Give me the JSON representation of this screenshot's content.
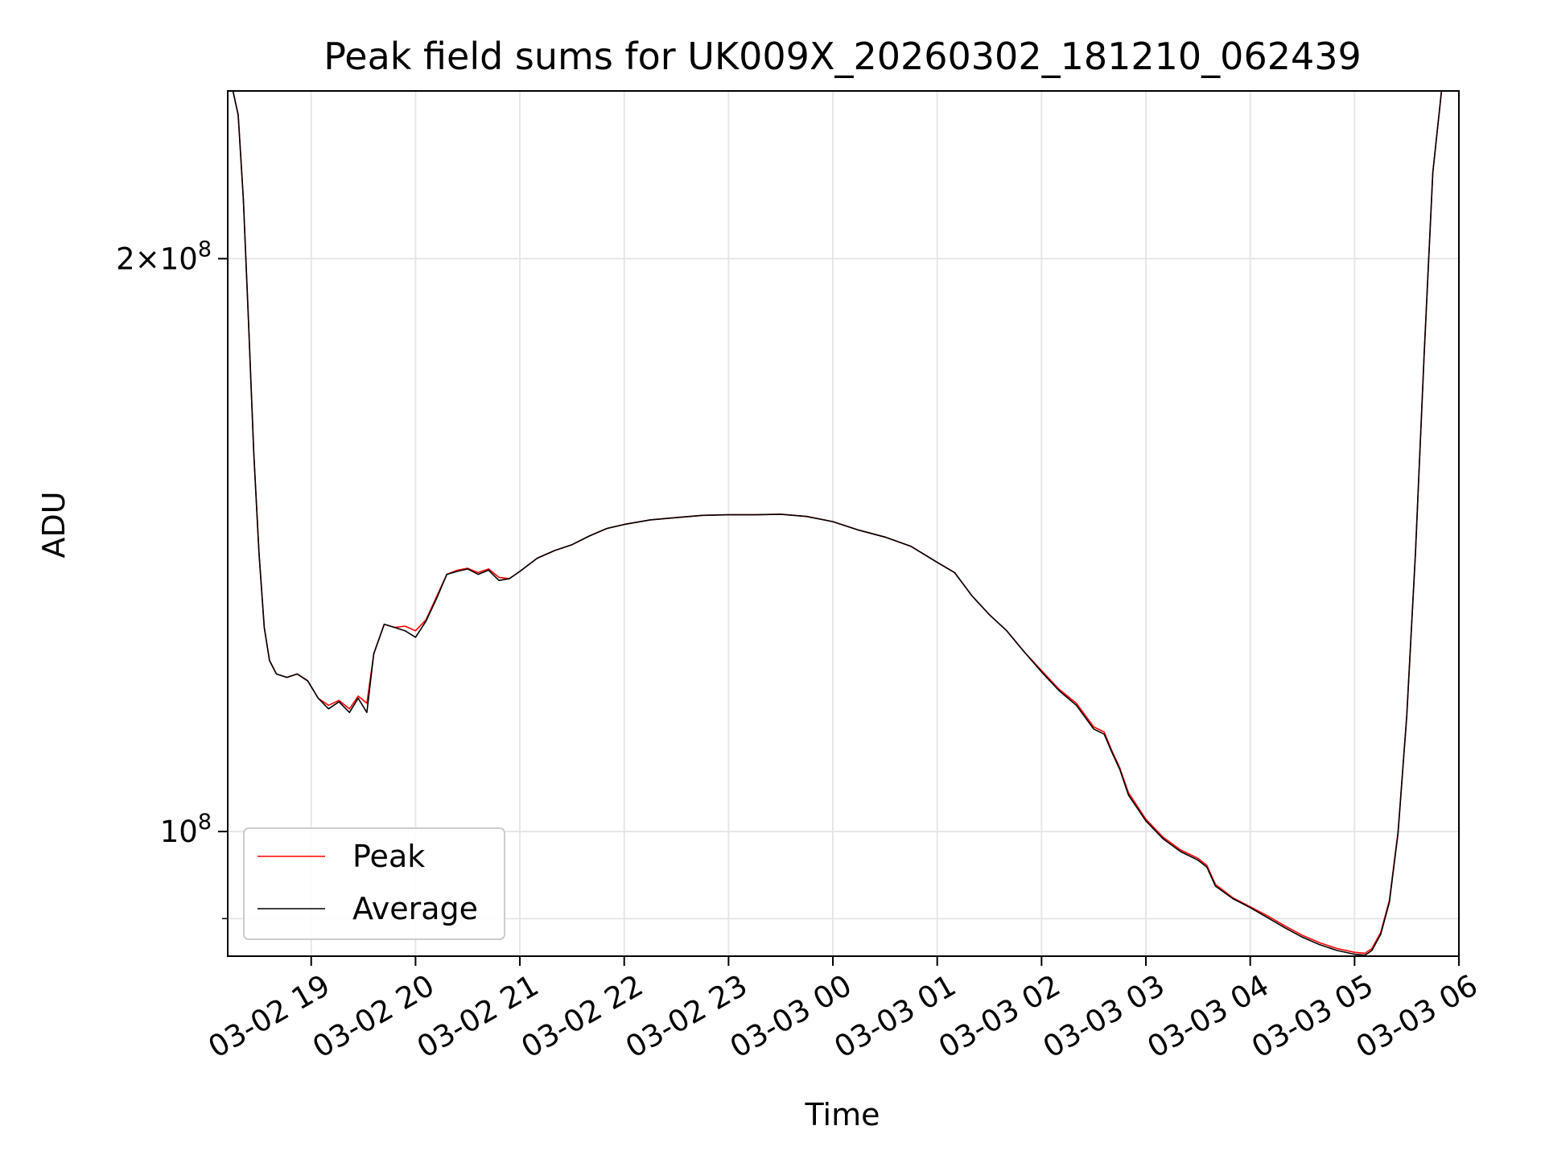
{
  "chart_data": {
    "type": "line",
    "title": "Peak field sums for UK009X_20260302_181210_062439",
    "xlabel": "Time",
    "ylabel": "ADU",
    "x_unit": "datetime",
    "xlim": [
      "2026-03-02 18:12",
      "2026-03-03 06:00"
    ],
    "ylim": [
      86000000,
      245000000
    ],
    "yscale": "log",
    "grid": true,
    "legend_position": "lower-left",
    "x_ticks": [
      {
        "value": "2026-03-02 19:00",
        "label": "03-02 19"
      },
      {
        "value": "2026-03-02 20:00",
        "label": "03-02 20"
      },
      {
        "value": "2026-03-02 21:00",
        "label": "03-02 21"
      },
      {
        "value": "2026-03-02 22:00",
        "label": "03-02 22"
      },
      {
        "value": "2026-03-02 23:00",
        "label": "03-02 23"
      },
      {
        "value": "2026-03-03 00:00",
        "label": "03-03 00"
      },
      {
        "value": "2026-03-03 01:00",
        "label": "03-03 01"
      },
      {
        "value": "2026-03-03 02:00",
        "label": "03-03 02"
      },
      {
        "value": "2026-03-03 03:00",
        "label": "03-03 03"
      },
      {
        "value": "2026-03-03 04:00",
        "label": "03-03 04"
      },
      {
        "value": "2026-03-03 05:00",
        "label": "03-03 05"
      },
      {
        "value": "2026-03-03 06:00",
        "label": "03-03 06"
      }
    ],
    "y_major_ticks": [
      {
        "value": 100000000,
        "mantissa": "",
        "exponent": "8",
        "base": "10"
      },
      {
        "value": 200000000,
        "mantissa": "2",
        "exponent": "8",
        "base": "10"
      }
    ],
    "y_minor_ticks": [
      90000000
    ],
    "series": [
      {
        "name": "Peak",
        "color": "#ff0000",
        "points": [
          [
            "2026-03-02 18:12",
            245000000
          ],
          [
            "2026-03-02 18:15",
            245000000
          ],
          [
            "2026-03-02 18:18",
            238000000
          ],
          [
            "2026-03-02 18:21",
            215000000
          ],
          [
            "2026-03-02 18:24",
            185000000
          ],
          [
            "2026-03-02 18:27",
            158000000
          ],
          [
            "2026-03-02 18:30",
            140000000
          ],
          [
            "2026-03-02 18:33",
            128000000
          ],
          [
            "2026-03-02 18:36",
            123000000
          ],
          [
            "2026-03-02 18:40",
            121000000
          ],
          [
            "2026-03-02 18:46",
            120500000
          ],
          [
            "2026-03-02 18:52",
            121000000
          ],
          [
            "2026-03-02 18:58",
            120000000
          ],
          [
            "2026-03-02 19:04",
            117500000
          ],
          [
            "2026-03-02 19:10",
            116500000
          ],
          [
            "2026-03-02 19:16",
            117200000
          ],
          [
            "2026-03-02 19:22",
            116000000
          ],
          [
            "2026-03-02 19:27",
            117800000
          ],
          [
            "2026-03-02 19:32",
            116800000
          ],
          [
            "2026-03-02 19:36",
            124000000
          ],
          [
            "2026-03-02 19:42",
            128500000
          ],
          [
            "2026-03-02 19:48",
            128000000
          ],
          [
            "2026-03-02 19:54",
            128200000
          ],
          [
            "2026-03-02 20:00",
            127500000
          ],
          [
            "2026-03-02 20:06",
            129200000
          ],
          [
            "2026-03-02 20:12",
            132800000
          ],
          [
            "2026-03-02 20:18",
            136500000
          ],
          [
            "2026-03-02 20:24",
            137200000
          ],
          [
            "2026-03-02 20:30",
            137500000
          ],
          [
            "2026-03-02 20:36",
            136800000
          ],
          [
            "2026-03-02 20:42",
            137400000
          ],
          [
            "2026-03-02 20:48",
            136000000
          ],
          [
            "2026-03-02 20:54",
            135800000
          ],
          [
            "2026-03-02 21:00",
            137000000
          ],
          [
            "2026-03-02 21:10",
            139200000
          ],
          [
            "2026-03-02 21:20",
            140500000
          ],
          [
            "2026-03-02 21:30",
            141500000
          ],
          [
            "2026-03-02 21:40",
            143000000
          ],
          [
            "2026-03-02 21:50",
            144300000
          ],
          [
            "2026-03-02 22:00",
            145000000
          ],
          [
            "2026-03-02 22:15",
            145800000
          ],
          [
            "2026-03-02 22:30",
            146200000
          ],
          [
            "2026-03-02 22:45",
            146600000
          ],
          [
            "2026-03-02 23:00",
            146700000
          ],
          [
            "2026-03-02 23:15",
            146700000
          ],
          [
            "2026-03-02 23:30",
            146800000
          ],
          [
            "2026-03-02 23:45",
            146400000
          ],
          [
            "2026-03-03 00:00",
            145500000
          ],
          [
            "2026-03-03 00:15",
            144000000
          ],
          [
            "2026-03-03 00:30",
            142800000
          ],
          [
            "2026-03-03 00:45",
            141200000
          ],
          [
            "2026-03-03 01:00",
            138500000
          ],
          [
            "2026-03-03 01:10",
            136800000
          ],
          [
            "2026-03-03 01:20",
            133000000
          ],
          [
            "2026-03-03 01:30",
            130000000
          ],
          [
            "2026-03-03 01:40",
            127500000
          ],
          [
            "2026-03-03 01:50",
            124300000
          ],
          [
            "2026-03-03 02:00",
            121500000
          ],
          [
            "2026-03-03 02:10",
            118800000
          ],
          [
            "2026-03-03 02:20",
            116800000
          ],
          [
            "2026-03-03 02:30",
            113500000
          ],
          [
            "2026-03-03 02:36",
            112800000
          ],
          [
            "2026-03-03 02:40",
            110500000
          ],
          [
            "2026-03-03 02:45",
            108000000
          ],
          [
            "2026-03-03 02:50",
            104800000
          ],
          [
            "2026-03-03 03:00",
            101500000
          ],
          [
            "2026-03-03 03:10",
            99300000
          ],
          [
            "2026-03-03 03:20",
            97800000
          ],
          [
            "2026-03-03 03:30",
            96800000
          ],
          [
            "2026-03-03 03:35",
            96000000
          ],
          [
            "2026-03-03 03:40",
            93800000
          ],
          [
            "2026-03-03 03:50",
            92300000
          ],
          [
            "2026-03-03 04:00",
            91300000
          ],
          [
            "2026-03-03 04:10",
            90300000
          ],
          [
            "2026-03-03 04:20",
            89200000
          ],
          [
            "2026-03-03 04:30",
            88200000
          ],
          [
            "2026-03-03 04:40",
            87400000
          ],
          [
            "2026-03-03 04:50",
            86800000
          ],
          [
            "2026-03-03 05:00",
            86400000
          ],
          [
            "2026-03-03 05:06",
            86300000
          ],
          [
            "2026-03-03 05:10",
            86800000
          ],
          [
            "2026-03-03 05:15",
            88500000
          ],
          [
            "2026-03-03 05:20",
            92000000
          ],
          [
            "2026-03-03 05:25",
            100000000
          ],
          [
            "2026-03-03 05:30",
            115000000
          ],
          [
            "2026-03-03 05:35",
            140000000
          ],
          [
            "2026-03-03 05:40",
            178000000
          ],
          [
            "2026-03-03 05:45",
            222000000
          ],
          [
            "2026-03-03 05:50",
            245000000
          ],
          [
            "2026-03-03 05:55",
            245000000
          ]
        ]
      },
      {
        "name": "Average",
        "color": "#000000",
        "points": [
          [
            "2026-03-02 18:12",
            245000000
          ],
          [
            "2026-03-02 18:15",
            245000000
          ],
          [
            "2026-03-02 18:18",
            238000000
          ],
          [
            "2026-03-02 18:21",
            215000000
          ],
          [
            "2026-03-02 18:24",
            185000000
          ],
          [
            "2026-03-02 18:27",
            158000000
          ],
          [
            "2026-03-02 18:30",
            140000000
          ],
          [
            "2026-03-02 18:33",
            128000000
          ],
          [
            "2026-03-02 18:36",
            123000000
          ],
          [
            "2026-03-02 18:40",
            121000000
          ],
          [
            "2026-03-02 18:46",
            120500000
          ],
          [
            "2026-03-02 18:52",
            121000000
          ],
          [
            "2026-03-02 18:58",
            120000000
          ],
          [
            "2026-03-02 19:04",
            117500000
          ],
          [
            "2026-03-02 19:10",
            116000000
          ],
          [
            "2026-03-02 19:16",
            117000000
          ],
          [
            "2026-03-02 19:22",
            115500000
          ],
          [
            "2026-03-02 19:27",
            117500000
          ],
          [
            "2026-03-02 19:32",
            115500000
          ],
          [
            "2026-03-02 19:36",
            124000000
          ],
          [
            "2026-03-02 19:42",
            128500000
          ],
          [
            "2026-03-02 19:48",
            128000000
          ],
          [
            "2026-03-02 19:54",
            127500000
          ],
          [
            "2026-03-02 20:00",
            126500000
          ],
          [
            "2026-03-02 20:06",
            129000000
          ],
          [
            "2026-03-02 20:12",
            132500000
          ],
          [
            "2026-03-02 20:18",
            136500000
          ],
          [
            "2026-03-02 20:24",
            137000000
          ],
          [
            "2026-03-02 20:30",
            137400000
          ],
          [
            "2026-03-02 20:36",
            136500000
          ],
          [
            "2026-03-02 20:42",
            137200000
          ],
          [
            "2026-03-02 20:48",
            135500000
          ],
          [
            "2026-03-02 20:54",
            135800000
          ],
          [
            "2026-03-02 21:00",
            137000000
          ],
          [
            "2026-03-02 21:10",
            139200000
          ],
          [
            "2026-03-02 21:20",
            140500000
          ],
          [
            "2026-03-02 21:30",
            141500000
          ],
          [
            "2026-03-02 21:40",
            143000000
          ],
          [
            "2026-03-02 21:50",
            144300000
          ],
          [
            "2026-03-02 22:00",
            145000000
          ],
          [
            "2026-03-02 22:15",
            145800000
          ],
          [
            "2026-03-02 22:30",
            146200000
          ],
          [
            "2026-03-02 22:45",
            146600000
          ],
          [
            "2026-03-02 23:00",
            146700000
          ],
          [
            "2026-03-02 23:15",
            146700000
          ],
          [
            "2026-03-02 23:30",
            146800000
          ],
          [
            "2026-03-02 23:45",
            146400000
          ],
          [
            "2026-03-03 00:00",
            145500000
          ],
          [
            "2026-03-03 00:15",
            144000000
          ],
          [
            "2026-03-03 00:30",
            142800000
          ],
          [
            "2026-03-03 00:45",
            141200000
          ],
          [
            "2026-03-03 01:00",
            138500000
          ],
          [
            "2026-03-03 01:10",
            136800000
          ],
          [
            "2026-03-03 01:20",
            133000000
          ],
          [
            "2026-03-03 01:30",
            130000000
          ],
          [
            "2026-03-03 01:40",
            127500000
          ],
          [
            "2026-03-03 01:50",
            124300000
          ],
          [
            "2026-03-03 02:00",
            121300000
          ],
          [
            "2026-03-03 02:10",
            118600000
          ],
          [
            "2026-03-03 02:20",
            116500000
          ],
          [
            "2026-03-03 02:30",
            113200000
          ],
          [
            "2026-03-03 02:36",
            112500000
          ],
          [
            "2026-03-03 02:40",
            110300000
          ],
          [
            "2026-03-03 02:45",
            107800000
          ],
          [
            "2026-03-03 02:50",
            104500000
          ],
          [
            "2026-03-03 03:00",
            101300000
          ],
          [
            "2026-03-03 03:10",
            99100000
          ],
          [
            "2026-03-03 03:20",
            97600000
          ],
          [
            "2026-03-03 03:30",
            96600000
          ],
          [
            "2026-03-03 03:35",
            95800000
          ],
          [
            "2026-03-03 03:40",
            93600000
          ],
          [
            "2026-03-03 03:50",
            92200000
          ],
          [
            "2026-03-03 04:00",
            91200000
          ],
          [
            "2026-03-03 04:10",
            90100000
          ],
          [
            "2026-03-03 04:20",
            89000000
          ],
          [
            "2026-03-03 04:30",
            88000000
          ],
          [
            "2026-03-03 04:40",
            87200000
          ],
          [
            "2026-03-03 04:50",
            86600000
          ],
          [
            "2026-03-03 05:00",
            86200000
          ],
          [
            "2026-03-03 05:06",
            86100000
          ],
          [
            "2026-03-03 05:10",
            86600000
          ],
          [
            "2026-03-03 05:15",
            88300000
          ],
          [
            "2026-03-03 05:20",
            91800000
          ],
          [
            "2026-03-03 05:25",
            99800000
          ],
          [
            "2026-03-03 05:30",
            115000000
          ],
          [
            "2026-03-03 05:35",
            140000000
          ],
          [
            "2026-03-03 05:40",
            178000000
          ],
          [
            "2026-03-03 05:45",
            222000000
          ],
          [
            "2026-03-03 05:50",
            245000000
          ],
          [
            "2026-03-03 05:55",
            245000000
          ]
        ]
      }
    ]
  }
}
